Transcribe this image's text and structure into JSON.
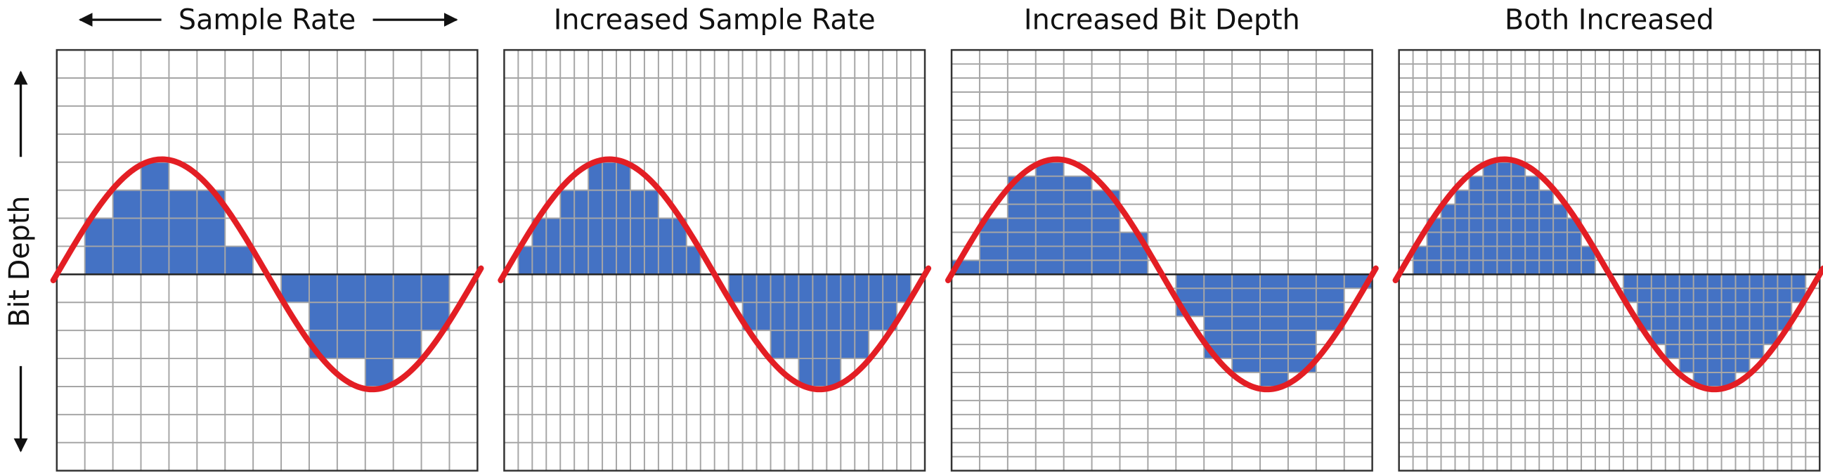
{
  "panels": [
    {
      "title": "Sample Rate"
    },
    {
      "title": "Increased Sample Rate"
    },
    {
      "title": "Increased Bit Depth"
    },
    {
      "title": "Both Increased"
    }
  ],
  "axis_label": "Bit Depth"
}
